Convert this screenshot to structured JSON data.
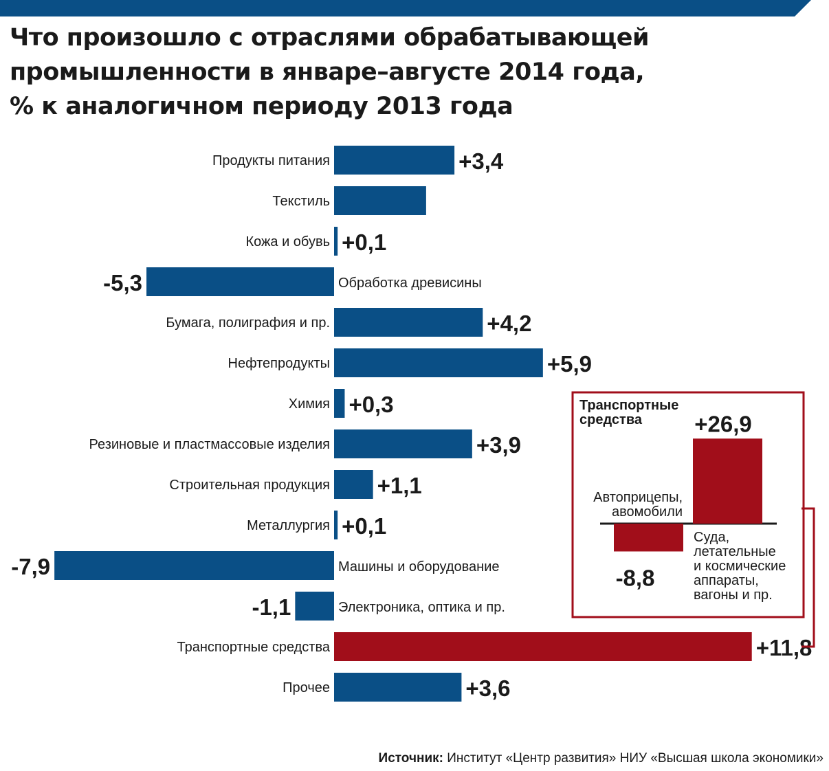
{
  "title_lines": [
    "Что произошло с отраслями обрабатывающей",
    "промышленности в январе–августе 2014 года,",
    "% к аналогичном периоду 2013 года"
  ],
  "colors": {
    "bar": "#0a4f86",
    "highlight": "#a10e1a",
    "band": "#0a4f86",
    "text": "#1a1a1a"
  },
  "chart_data": [
    {
      "type": "bar",
      "orientation": "horizontal",
      "categories": [
        "Продукты питания",
        "Текстиль",
        "Кожа и обувь",
        "Обработка древисины",
        "Бумага, полиграфия и пр.",
        "Нефтепродукты",
        "Химия",
        "Резиновые и пластмассовые изделия",
        "Строительная продукция",
        "Металлургия",
        "Машины и оборудование",
        "Электроника, оптика и пр.",
        "Транспортные средства",
        "Прочее"
      ],
      "values": [
        3.4,
        2.6,
        0.1,
        -5.3,
        4.2,
        5.9,
        0.3,
        3.9,
        1.1,
        0.1,
        -7.9,
        -1.1,
        11.8,
        3.6
      ],
      "value_labels": [
        "+3,4",
        "",
        "+0,1",
        "-5,3",
        "+4,2",
        "+5,9",
        "+0,3",
        "+3,9",
        "+1,1",
        "+0,1",
        "-7,9",
        "-1,1",
        "+11,8",
        "+3,6"
      ],
      "highlight_index": 12
    },
    {
      "type": "bar",
      "title": "Транспортные средства",
      "categories": [
        "Автоприцепы, авомобили",
        "Суда, летательные и космические аппараты, вагоны и пр."
      ],
      "category_lines": [
        [
          "Автоприцепы,",
          "авомобили"
        ],
        [
          "Суда,",
          "летательные",
          "и космические",
          "аппараты,",
          "вагоны и пр."
        ]
      ],
      "values": [
        -8.8,
        26.9
      ],
      "value_labels": [
        "-8,8",
        "+26,9"
      ]
    }
  ],
  "source": {
    "label": "Источник:",
    "text": " Институт «Центр развития» НИУ «Высшая школа экономики»"
  }
}
